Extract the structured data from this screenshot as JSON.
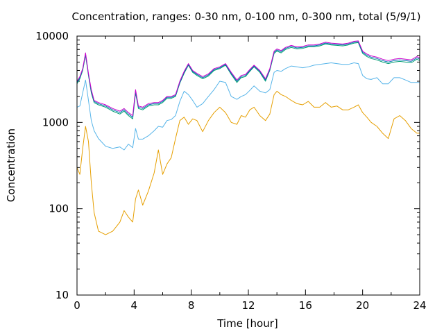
{
  "chart_data": {
    "type": "line",
    "title": "Concentration, ranges: 0-30 nm, 0-100 nm, 0-300 nm, total (5/9/1)",
    "xlabel": "Time [hour]",
    "ylabel": "Concentration",
    "xlim": [
      0,
      24
    ],
    "ylim": [
      10,
      10000
    ],
    "yscale": "log",
    "grid": false,
    "legend": "none",
    "x_ticks": [
      "0",
      "4",
      "8",
      "12",
      "16",
      "20",
      "24"
    ],
    "y_ticks": [
      "10",
      "100",
      "1000",
      "10000"
    ],
    "x": [
      0.0,
      0.2,
      0.4,
      0.6,
      0.8,
      1.0,
      1.2,
      1.5,
      2.0,
      2.5,
      3.0,
      3.3,
      3.6,
      3.9,
      4.1,
      4.3,
      4.6,
      5.0,
      5.4,
      5.7,
      6.0,
      6.3,
      6.6,
      6.9,
      7.2,
      7.5,
      7.8,
      8.1,
      8.4,
      8.8,
      9.2,
      9.6,
      10.0,
      10.4,
      10.8,
      11.2,
      11.5,
      11.8,
      12.1,
      12.4,
      12.8,
      13.2,
      13.5,
      13.8,
      14.0,
      14.3,
      14.6,
      15.0,
      15.4,
      15.8,
      16.2,
      16.6,
      17.0,
      17.4,
      17.8,
      18.2,
      18.6,
      19.0,
      19.4,
      19.7,
      20.0,
      20.3,
      20.6,
      21.0,
      21.4,
      21.8,
      22.2,
      22.6,
      23.0,
      23.4,
      23.8,
      24.0
    ],
    "series": [
      {
        "color": "#e69f00",
        "values": [
          300,
          250,
          500,
          900,
          600,
          200,
          90,
          55,
          50,
          55,
          70,
          95,
          80,
          70,
          130,
          165,
          110,
          160,
          260,
          480,
          250,
          330,
          390,
          650,
          1050,
          1150,
          950,
          1100,
          1050,
          780,
          1050,
          1300,
          1500,
          1300,
          1000,
          950,
          1200,
          1150,
          1400,
          1500,
          1200,
          1050,
          1250,
          2100,
          2300,
          2100,
          2000,
          1800,
          1650,
          1600,
          1750,
          1500,
          1500,
          1700,
          1500,
          1550,
          1400,
          1400,
          1500,
          1600,
          1300,
          1150,
          1000,
          900,
          750,
          650,
          1100,
          1200,
          1050,
          850,
          750,
          750
        ]
      },
      {
        "color": "#56b4e9",
        "values": [
          1500,
          1550,
          2200,
          3100,
          1800,
          1050,
          800,
          650,
          530,
          500,
          520,
          480,
          560,
          510,
          850,
          640,
          640,
          700,
          800,
          900,
          880,
          1050,
          1080,
          1200,
          1750,
          2300,
          2100,
          1800,
          1500,
          1650,
          2000,
          2400,
          3000,
          2900,
          2000,
          1850,
          2000,
          2100,
          2350,
          2650,
          2300,
          2200,
          2400,
          3800,
          4000,
          3900,
          4200,
          4500,
          4400,
          4300,
          4400,
          4600,
          4700,
          4800,
          4900,
          4800,
          4700,
          4700,
          4900,
          4800,
          3500,
          3200,
          3150,
          3300,
          2800,
          2800,
          3300,
          3300,
          3100,
          2900,
          2900,
          2900
        ]
      },
      {
        "color": "#009e73",
        "values": [
          2800,
          3200,
          4000,
          6000,
          3500,
          2200,
          1700,
          1600,
          1500,
          1350,
          1250,
          1350,
          1200,
          1100,
          2200,
          1450,
          1400,
          1550,
          1600,
          1600,
          1700,
          1900,
          1900,
          2000,
          2850,
          3700,
          4600,
          3800,
          3500,
          3200,
          3450,
          4000,
          4200,
          4600,
          3600,
          2900,
          3300,
          3400,
          3900,
          4400,
          3800,
          3000,
          4000,
          6300,
          6700,
          6400,
          7000,
          7400,
          7100,
          7200,
          7500,
          7500,
          7700,
          8100,
          7900,
          7800,
          7700,
          7900,
          8300,
          8400,
          6300,
          5800,
          5500,
          5300,
          5000,
          4800,
          5000,
          5100,
          5000,
          4900,
          5400,
          5200
        ]
      },
      {
        "color": "#0072b2",
        "values": [
          2900,
          3300,
          4100,
          6200,
          3600,
          2300,
          1750,
          1650,
          1550,
          1400,
          1300,
          1400,
          1250,
          1150,
          2300,
          1500,
          1450,
          1600,
          1650,
          1650,
          1750,
          1950,
          1950,
          2050,
          2900,
          3800,
          4700,
          3900,
          3600,
          3300,
          3550,
          4100,
          4300,
          4700,
          3700,
          3000,
          3400,
          3500,
          4000,
          4500,
          3900,
          3100,
          4100,
          6500,
          6900,
          6600,
          7200,
          7600,
          7300,
          7400,
          7700,
          7700,
          7900,
          8300,
          8100,
          8000,
          7900,
          8100,
          8500,
          8600,
          6500,
          6000,
          5700,
          5500,
          5200,
          5000,
          5200,
          5300,
          5200,
          5100,
          5600,
          5400
        ]
      },
      {
        "color": "#cc00cc",
        "values": [
          3000,
          3400,
          4200,
          6400,
          3700,
          2400,
          1800,
          1700,
          1600,
          1450,
          1350,
          1450,
          1300,
          1200,
          2400,
          1550,
          1500,
          1650,
          1700,
          1700,
          1800,
          2000,
          2000,
          2100,
          3000,
          3900,
          4800,
          4000,
          3700,
          3400,
          3650,
          4200,
          4400,
          4800,
          3800,
          3100,
          3500,
          3600,
          4100,
          4600,
          4000,
          3200,
          4200,
          6700,
          7100,
          6800,
          7400,
          7800,
          7500,
          7600,
          7900,
          7900,
          8100,
          8500,
          8300,
          8200,
          8100,
          8300,
          8700,
          8800,
          6700,
          6200,
          5900,
          5700,
          5400,
          5200,
          5400,
          5500,
          5400,
          5300,
          5800,
          5600
        ]
      }
    ]
  }
}
